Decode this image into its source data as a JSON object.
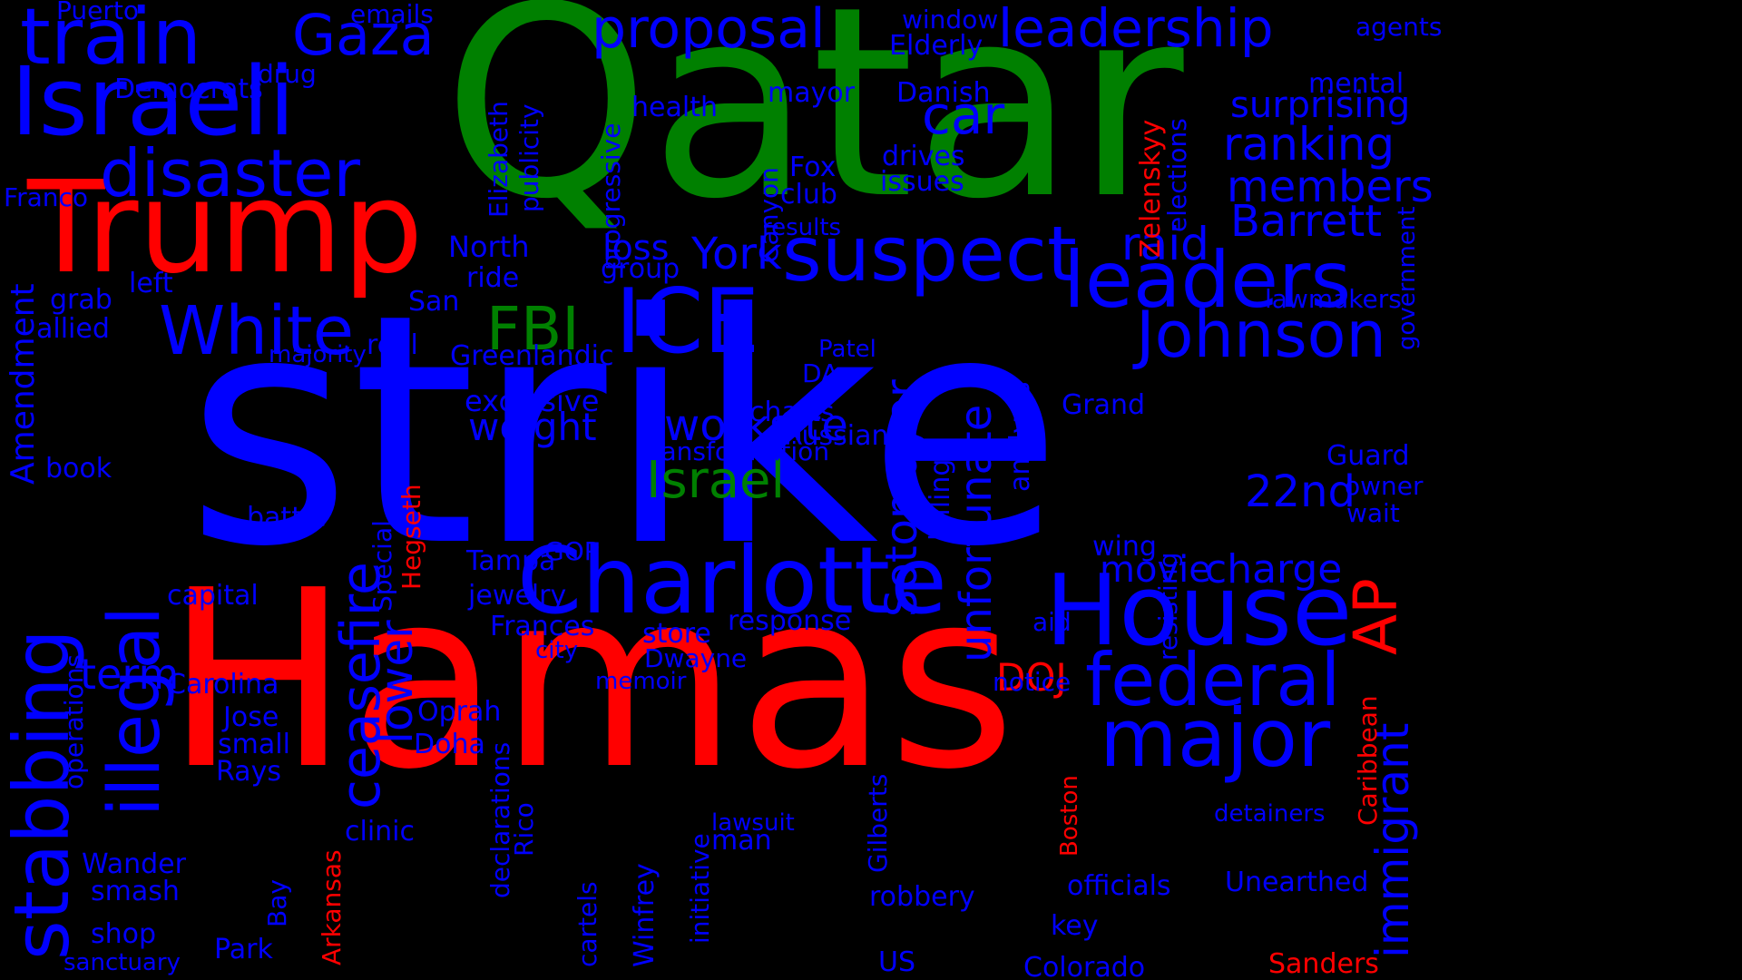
{
  "colors": {
    "background": "#000000",
    "blue": "#0000ff",
    "green": "#008000",
    "red": "#ff0000"
  },
  "words": [
    {
      "text": "strike",
      "color": "blue",
      "orient": "h"
    },
    {
      "text": "Qatar",
      "color": "green",
      "orient": "h"
    },
    {
      "text": "Hamas",
      "color": "red",
      "orient": "h"
    },
    {
      "text": "Trump",
      "color": "red",
      "orient": "h"
    },
    {
      "text": "Israeli",
      "color": "blue",
      "orient": "h"
    },
    {
      "text": "train",
      "color": "blue",
      "orient": "h"
    },
    {
      "text": "Gaza",
      "color": "blue",
      "orient": "h"
    },
    {
      "text": "proposal",
      "color": "blue",
      "orient": "h"
    },
    {
      "text": "leadership",
      "color": "blue",
      "orient": "h"
    },
    {
      "text": "disaster",
      "color": "blue",
      "orient": "h"
    },
    {
      "text": "suspect",
      "color": "blue",
      "orient": "h"
    },
    {
      "text": "leaders",
      "color": "blue",
      "orient": "h"
    },
    {
      "text": "Johnson",
      "color": "blue",
      "orient": "h"
    },
    {
      "text": "White",
      "color": "blue",
      "orient": "h"
    },
    {
      "text": "FBI",
      "color": "green",
      "orient": "h"
    },
    {
      "text": "ICE",
      "color": "blue",
      "orient": "h"
    },
    {
      "text": "Charlotte",
      "color": "blue",
      "orient": "h"
    },
    {
      "text": "House",
      "color": "blue",
      "orient": "h"
    },
    {
      "text": "federal",
      "color": "blue",
      "orient": "h"
    },
    {
      "text": "major",
      "color": "blue",
      "orient": "h"
    },
    {
      "text": "Israel",
      "color": "green",
      "orient": "h"
    },
    {
      "text": "car",
      "color": "blue",
      "orient": "h"
    },
    {
      "text": "ranking",
      "color": "blue",
      "orient": "h"
    },
    {
      "text": "members",
      "color": "blue",
      "orient": "h"
    },
    {
      "text": "Barrett",
      "color": "blue",
      "orient": "h"
    },
    {
      "text": "surprising",
      "color": "blue",
      "orient": "h"
    },
    {
      "text": "raid",
      "color": "blue",
      "orient": "h"
    },
    {
      "text": "York",
      "color": "blue",
      "orient": "h"
    },
    {
      "text": "worksite",
      "color": "blue",
      "orient": "h"
    },
    {
      "text": "weight",
      "color": "blue",
      "orient": "h"
    },
    {
      "text": "charge",
      "color": "blue",
      "orient": "h"
    },
    {
      "text": "movie",
      "color": "blue",
      "orient": "h"
    },
    {
      "text": "22nd",
      "color": "blue",
      "orient": "h"
    },
    {
      "text": "term",
      "color": "blue",
      "orient": "h"
    },
    {
      "text": "DOJ",
      "color": "red",
      "orient": "h"
    },
    {
      "text": "exclusive",
      "color": "blue",
      "orient": "h"
    },
    {
      "text": "transformation",
      "color": "blue",
      "orient": "h"
    },
    {
      "text": "loss",
      "color": "blue",
      "orient": "h"
    },
    {
      "text": "group",
      "color": "blue",
      "orient": "h"
    },
    {
      "text": "health",
      "color": "blue",
      "orient": "h"
    },
    {
      "text": "mayor",
      "color": "blue",
      "orient": "h"
    },
    {
      "text": "Danish",
      "color": "blue",
      "orient": "h"
    },
    {
      "text": "drives",
      "color": "blue",
      "orient": "h"
    },
    {
      "text": "issues",
      "color": "blue",
      "orient": "h"
    },
    {
      "text": "Fox",
      "color": "blue",
      "orient": "h"
    },
    {
      "text": "club",
      "color": "blue",
      "orient": "h"
    },
    {
      "text": "results",
      "color": "blue",
      "orient": "h"
    },
    {
      "text": "window",
      "color": "blue",
      "orient": "h"
    },
    {
      "text": "Elderly",
      "color": "blue",
      "orient": "h"
    },
    {
      "text": "emails",
      "color": "blue",
      "orient": "h"
    },
    {
      "text": "Puerto",
      "color": "blue",
      "orient": "h"
    },
    {
      "text": "Democrats",
      "color": "blue",
      "orient": "h"
    },
    {
      "text": "drug",
      "color": "blue",
      "orient": "h"
    },
    {
      "text": "Franco",
      "color": "blue",
      "orient": "h"
    },
    {
      "text": "North",
      "color": "blue",
      "orient": "h"
    },
    {
      "text": "ride",
      "color": "blue",
      "orient": "h"
    },
    {
      "text": "left",
      "color": "blue",
      "orient": "h"
    },
    {
      "text": "grab",
      "color": "blue",
      "orient": "h"
    },
    {
      "text": "majority",
      "color": "blue",
      "orient": "h"
    },
    {
      "text": "San",
      "color": "blue",
      "orient": "h"
    },
    {
      "text": "Greenlandic",
      "color": "blue",
      "orient": "h"
    },
    {
      "text": "allied",
      "color": "blue",
      "orient": "h"
    },
    {
      "text": "real",
      "color": "blue",
      "orient": "h"
    },
    {
      "text": "book",
      "color": "blue",
      "orient": "h"
    },
    {
      "text": "battle",
      "color": "blue",
      "orient": "h"
    },
    {
      "text": "capital",
      "color": "blue",
      "orient": "h"
    },
    {
      "text": "Carolina",
      "color": "blue",
      "orient": "h"
    },
    {
      "text": "Jose",
      "color": "blue",
      "orient": "h"
    },
    {
      "text": "small",
      "color": "blue",
      "orient": "h"
    },
    {
      "text": "Rays",
      "color": "blue",
      "orient": "h"
    },
    {
      "text": "Wander",
      "color": "blue",
      "orient": "h"
    },
    {
      "text": "smash",
      "color": "blue",
      "orient": "h"
    },
    {
      "text": "shop",
      "color": "blue",
      "orient": "h"
    },
    {
      "text": "sanctuary",
      "color": "blue",
      "orient": "h"
    },
    {
      "text": "Park",
      "color": "blue",
      "orient": "h"
    },
    {
      "text": "clinic",
      "color": "blue",
      "orient": "h"
    },
    {
      "text": "Oprah",
      "color": "blue",
      "orient": "h"
    },
    {
      "text": "Doha",
      "color": "blue",
      "orient": "h"
    },
    {
      "text": "GOP",
      "color": "blue",
      "orient": "h"
    },
    {
      "text": "Tampa",
      "color": "blue",
      "orient": "h"
    },
    {
      "text": "jewelry",
      "color": "blue",
      "orient": "h"
    },
    {
      "text": "Frances",
      "color": "blue",
      "orient": "h"
    },
    {
      "text": "city",
      "color": "blue",
      "orient": "h"
    },
    {
      "text": "memoir",
      "color": "blue",
      "orient": "h"
    },
    {
      "text": "store",
      "color": "blue",
      "orient": "h"
    },
    {
      "text": "Dwayne",
      "color": "blue",
      "orient": "h"
    },
    {
      "text": "response",
      "color": "blue",
      "orient": "h"
    },
    {
      "text": "Patel",
      "color": "blue",
      "orient": "h"
    },
    {
      "text": "DAs",
      "color": "blue",
      "orient": "h"
    },
    {
      "text": "charts",
      "color": "blue",
      "orient": "h"
    },
    {
      "text": "Russian",
      "color": "blue",
      "orient": "h"
    },
    {
      "text": "Grand",
      "color": "blue",
      "orient": "h"
    },
    {
      "text": "aid",
      "color": "blue",
      "orient": "h"
    },
    {
      "text": "notice",
      "color": "blue",
      "orient": "h"
    },
    {
      "text": "lawsuit",
      "color": "blue",
      "orient": "h"
    },
    {
      "text": "man",
      "color": "blue",
      "orient": "h"
    },
    {
      "text": "robbery",
      "color": "blue",
      "orient": "h"
    },
    {
      "text": "US",
      "color": "blue",
      "orient": "h"
    },
    {
      "text": "key",
      "color": "blue",
      "orient": "h"
    },
    {
      "text": "Colorado",
      "color": "blue",
      "orient": "h"
    },
    {
      "text": "officials",
      "color": "blue",
      "orient": "h"
    },
    {
      "text": "Unearthed",
      "color": "blue",
      "orient": "h"
    },
    {
      "text": "detainers",
      "color": "blue",
      "orient": "h"
    },
    {
      "text": "wing",
      "color": "blue",
      "orient": "h"
    },
    {
      "text": "Guard",
      "color": "blue",
      "orient": "h"
    },
    {
      "text": "owner",
      "color": "blue",
      "orient": "h"
    },
    {
      "text": "wait",
      "color": "blue",
      "orient": "h"
    },
    {
      "text": "lawmakers",
      "color": "blue",
      "orient": "h"
    },
    {
      "text": "agents",
      "color": "blue",
      "orient": "h"
    },
    {
      "text": "mental",
      "color": "blue",
      "orient": "h"
    },
    {
      "text": "Sanders",
      "color": "red",
      "orient": "h"
    },
    {
      "text": "stabbing",
      "color": "blue",
      "orient": "v"
    },
    {
      "text": "illegal",
      "color": "blue",
      "orient": "v"
    },
    {
      "text": "Amendment",
      "color": "blue",
      "orient": "v"
    },
    {
      "text": "ceasefire",
      "color": "blue",
      "orient": "v"
    },
    {
      "text": "lower",
      "color": "blue",
      "orient": "v"
    },
    {
      "text": "Special",
      "color": "blue",
      "orient": "v"
    },
    {
      "text": "Hegseth",
      "color": "red",
      "orient": "v"
    },
    {
      "text": "Sotomayor",
      "color": "blue",
      "orient": "v"
    },
    {
      "text": "unfortunate",
      "color": "blue",
      "orient": "v"
    },
    {
      "text": "billing",
      "color": "blue",
      "orient": "v"
    },
    {
      "text": "analysis",
      "color": "blue",
      "orient": "v"
    },
    {
      "text": "immigrant",
      "color": "blue",
      "orient": "v"
    },
    {
      "text": "AP",
      "color": "red",
      "orient": "v"
    },
    {
      "text": "Caribbean",
      "color": "red",
      "orient": "v"
    },
    {
      "text": "Boston",
      "color": "red",
      "orient": "v"
    },
    {
      "text": "Zelenskyy",
      "color": "red",
      "orient": "v"
    },
    {
      "text": "elections",
      "color": "blue",
      "orient": "v"
    },
    {
      "text": "government",
      "color": "blue",
      "orient": "v"
    },
    {
      "text": "Elizabeth",
      "color": "blue",
      "orient": "v"
    },
    {
      "text": "publicity",
      "color": "blue",
      "orient": "v"
    },
    {
      "text": "progressive",
      "color": "blue",
      "orient": "v"
    },
    {
      "text": "Canyon",
      "color": "blue",
      "orient": "v"
    },
    {
      "text": "operations",
      "color": "blue",
      "orient": "v"
    },
    {
      "text": "Bay",
      "color": "blue",
      "orient": "v"
    },
    {
      "text": "Arkansas",
      "color": "red",
      "orient": "v"
    },
    {
      "text": "Rico",
      "color": "blue",
      "orient": "v"
    },
    {
      "text": "declarations",
      "color": "blue",
      "orient": "v"
    },
    {
      "text": "cartels",
      "color": "blue",
      "orient": "v"
    },
    {
      "text": "Winfrey",
      "color": "blue",
      "orient": "v"
    },
    {
      "text": "initiative",
      "color": "blue",
      "orient": "v"
    },
    {
      "text": "Gilberts",
      "color": "blue",
      "orient": "v"
    },
    {
      "text": "resisting",
      "color": "blue",
      "orient": "v"
    }
  ]
}
